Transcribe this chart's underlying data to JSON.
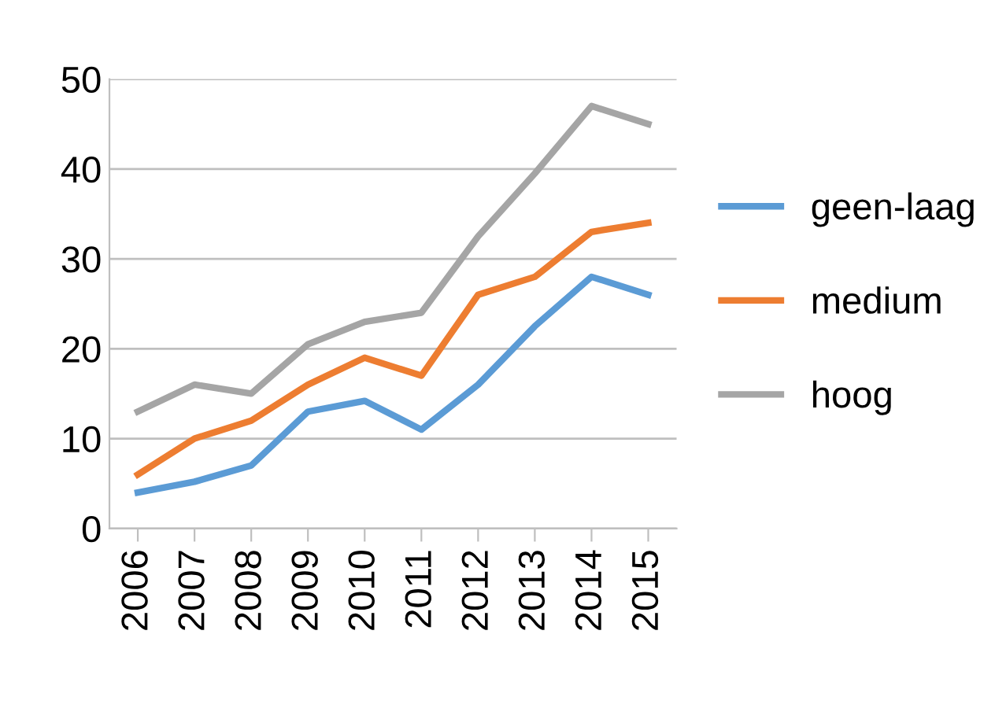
{
  "chart_data": {
    "type": "line",
    "categories": [
      "2006",
      "2007",
      "2008",
      "2009",
      "2010",
      "2011",
      "2012",
      "2013",
      "2014",
      "2015"
    ],
    "series": [
      {
        "name": "geen-laag",
        "color": "#5b9bd5",
        "values": [
          4,
          5.2,
          7,
          13,
          14.2,
          11,
          16,
          22.5,
          28,
          26
        ]
      },
      {
        "name": "medium",
        "color": "#ed7d31",
        "values": [
          6,
          10,
          12,
          16,
          19,
          17,
          26,
          28,
          33,
          34
        ]
      },
      {
        "name": "hoog",
        "color": "#a5a5a5",
        "values": [
          13,
          16,
          15,
          20.5,
          23,
          24,
          32.5,
          39.5,
          47,
          45
        ]
      }
    ],
    "ylim": [
      0,
      50
    ],
    "yticks": [
      0,
      10,
      20,
      30,
      40,
      50
    ],
    "grid": "y",
    "legend": "right",
    "marker": "none"
  }
}
